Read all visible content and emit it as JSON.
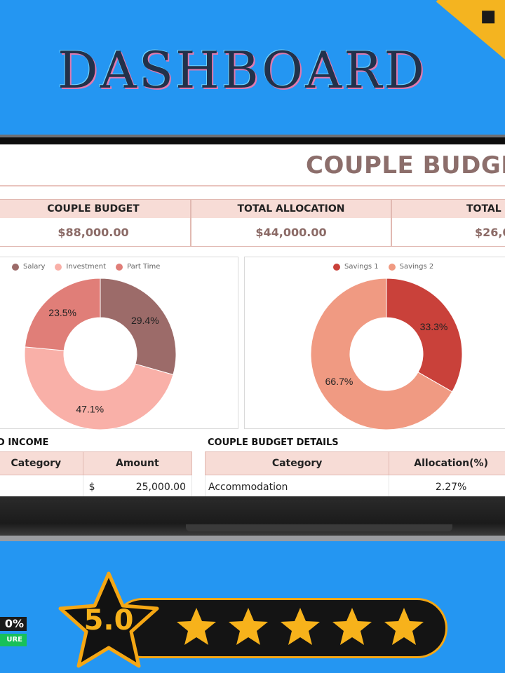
{
  "hero": {
    "title": "DASHBOARD"
  },
  "sheet": {
    "title": "COUPLE BUDGET"
  },
  "stats": [
    {
      "label": "COUPLE BUDGET",
      "value": "$88,000.00"
    },
    {
      "label": "TOTAL ALLOCATION",
      "value": "$44,000.00"
    },
    {
      "label": "TOTAL E",
      "value": "$26,0"
    }
  ],
  "charts": {
    "income": {
      "type": "pie",
      "legend": [
        "Salary",
        "Investment",
        "Part Time"
      ],
      "colors": [
        "#9c6b69",
        "#f9b0a8",
        "#e07e78"
      ],
      "values": [
        29.4,
        47.1,
        23.5
      ],
      "labels": [
        "29.4%",
        "47.1%",
        "23.5%"
      ]
    },
    "savings": {
      "type": "pie",
      "legend": [
        "Savings 1",
        "Savings 2"
      ],
      "colors": [
        "#c9413a",
        "#f09a82"
      ],
      "values": [
        33.3,
        66.7
      ],
      "labels": [
        "33.3%",
        "66.7%"
      ]
    }
  },
  "income_table": {
    "section_title": "D INCOME",
    "headers": [
      "Category",
      "Amount"
    ],
    "row": {
      "category": "",
      "currency": "$",
      "amount": "25,000.00"
    }
  },
  "details_table": {
    "section_title": "COUPLE BUDGET DETAILS",
    "headers": [
      "Category",
      "Allocation(%)"
    ],
    "row": {
      "category": "Accommodation",
      "allocation": "2.27%"
    }
  },
  "badge": {
    "line1": "0%",
    "line2": "URE"
  },
  "rating": {
    "score": "5.0",
    "stars": 5,
    "star_color": "#f7b21b"
  }
}
